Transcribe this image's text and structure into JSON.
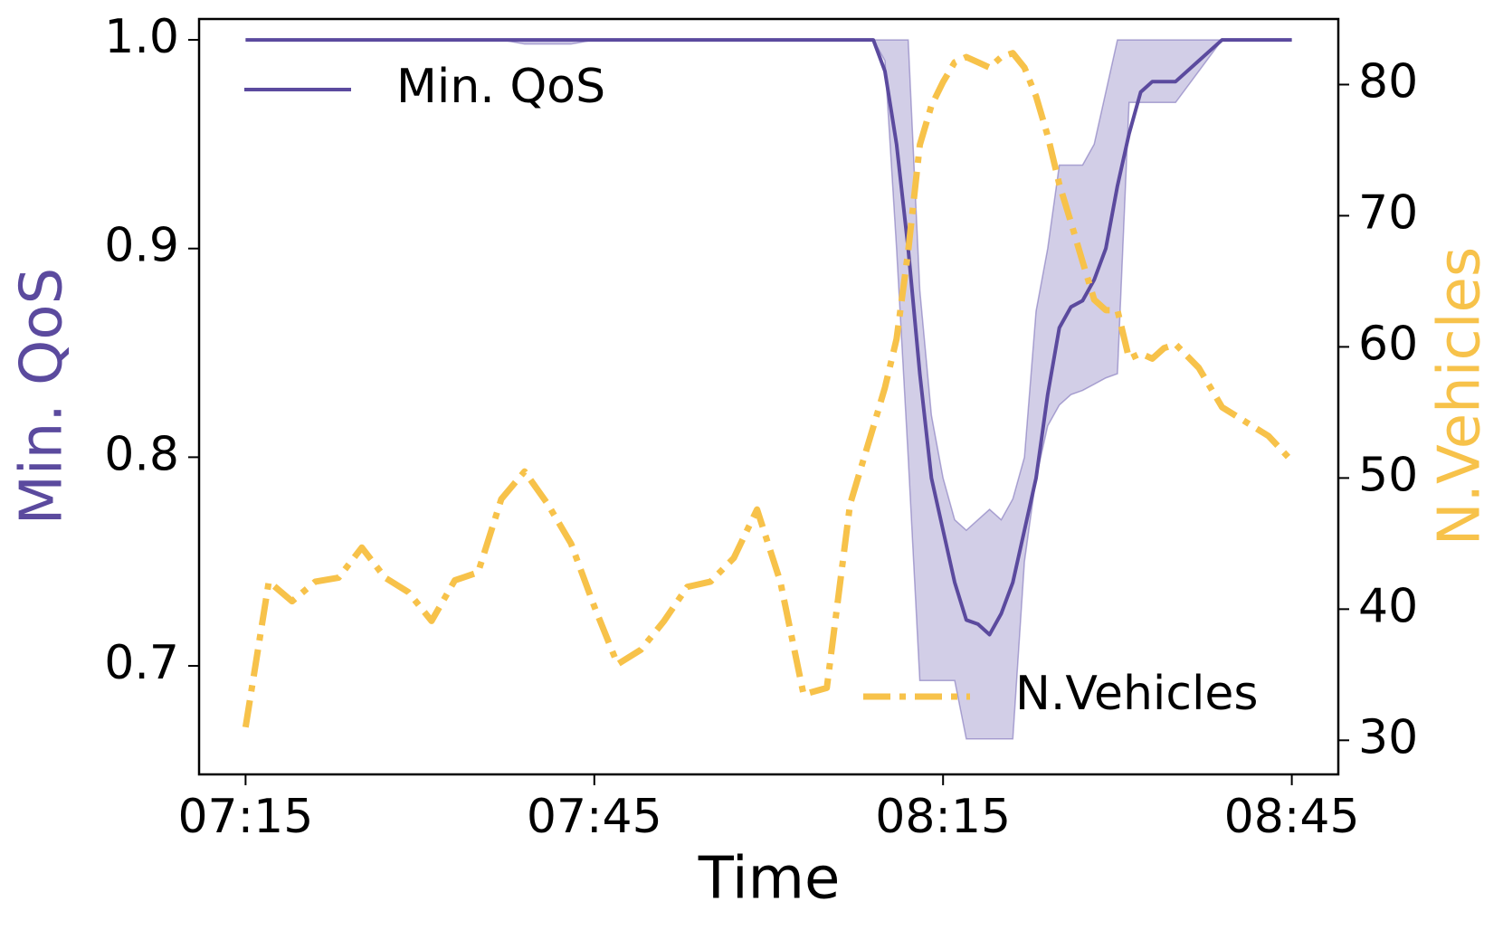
{
  "chart_data": {
    "type": "line",
    "xlabel": "Time",
    "ylabel": "Min. QoS",
    "y2label": "N.Vehicles",
    "x": [
      "07:15",
      "07:17",
      "07:19",
      "07:21",
      "07:23",
      "07:25",
      "07:27",
      "07:29",
      "07:31",
      "07:33",
      "07:35",
      "07:37",
      "07:39",
      "07:41",
      "07:43",
      "07:45",
      "07:47",
      "07:49",
      "07:51",
      "07:53",
      "07:55",
      "07:57",
      "07:59",
      "08:01",
      "08:03",
      "08:05",
      "08:07",
      "08:09",
      "08:10",
      "08:11",
      "08:12",
      "08:13",
      "08:14",
      "08:15",
      "08:16",
      "08:17",
      "08:18",
      "08:19",
      "08:20",
      "08:21",
      "08:22",
      "08:23",
      "08:24",
      "08:25",
      "08:26",
      "08:27",
      "08:28",
      "08:29",
      "08:30",
      "08:31",
      "08:32",
      "08:33",
      "08:34",
      "08:35",
      "08:37",
      "08:39",
      "08:41",
      "08:43",
      "08:45"
    ],
    "xlim": [
      "07:11",
      "08:49"
    ],
    "xticks": [
      "07:15",
      "07:45",
      "08:15",
      "08:45"
    ],
    "ylim": [
      0.648,
      1.01
    ],
    "yticks": [
      0.7,
      0.8,
      0.9,
      {
        "value": 1,
        "label": "1.0"
      }
    ],
    "y2lim": [
      27.4,
      85
    ],
    "y2ticks": [
      30,
      40,
      50,
      60,
      70,
      80
    ],
    "series": [
      {
        "name": "Min. QoS",
        "color": "#5b4a9e",
        "band_color": "#6a5cb0",
        "style": "solid",
        "legend_loc": "upper left",
        "values": [
          1,
          1,
          1,
          1,
          1,
          1,
          1,
          1,
          1,
          1,
          1,
          1,
          1,
          1,
          1,
          1,
          1,
          1,
          1,
          1,
          1,
          1,
          1,
          1,
          1,
          1,
          1,
          1,
          0.985,
          0.95,
          0.9,
          0.84,
          0.79,
          0.765,
          0.74,
          0.722,
          0.72,
          0.715,
          0.725,
          0.74,
          0.765,
          0.79,
          0.83,
          0.862,
          0.872,
          0.875,
          0.885,
          0.9,
          0.93,
          0.955,
          0.975,
          0.98,
          0.98,
          0.98,
          0.99,
          1,
          1,
          1,
          1
        ],
        "lower": [
          1,
          1,
          1,
          1,
          1,
          1,
          1,
          1,
          1,
          1,
          1,
          1,
          0.998,
          0.998,
          0.998,
          1,
          1,
          1,
          1,
          1,
          1,
          1,
          1,
          1,
          1,
          1,
          1,
          1,
          0.99,
          0.9,
          0.8,
          0.693,
          0.693,
          0.693,
          0.693,
          0.665,
          0.665,
          0.665,
          0.665,
          0.665,
          0.75,
          0.79,
          0.815,
          0.825,
          0.83,
          0.832,
          0.835,
          0.838,
          0.84,
          0.97,
          0.97,
          0.97,
          0.97,
          0.97,
          0.985,
          1,
          1,
          1,
          1
        ],
        "upper": [
          1,
          1,
          1,
          1,
          1,
          1,
          1,
          1,
          1,
          1,
          1,
          1,
          1,
          1,
          1,
          1,
          1,
          1,
          1,
          1,
          1,
          1,
          1,
          1,
          1,
          1,
          1,
          1,
          1,
          1,
          1,
          0.88,
          0.82,
          0.79,
          0.77,
          0.765,
          0.77,
          0.775,
          0.77,
          0.78,
          0.8,
          0.87,
          0.9,
          0.94,
          0.94,
          0.94,
          0.95,
          0.975,
          1,
          1,
          1,
          1,
          1,
          1,
          1,
          1,
          1,
          1,
          1
        ]
      },
      {
        "name": "N.Vehicles",
        "color": "#f7c24a",
        "style": "dashdot",
        "axis": "y2",
        "legend_loc": "lower right",
        "values": [
          31,
          42.1,
          40.6,
          42.1,
          42.4,
          44.7,
          42.4,
          41.3,
          39.1,
          42.2,
          42.8,
          48.4,
          50.5,
          48,
          45,
          40.2,
          35.8,
          36.9,
          39.1,
          41.7,
          42.1,
          43.9,
          47.6,
          42.1,
          33.5,
          34,
          48,
          53.9,
          56.9,
          60.6,
          67.3,
          75.4,
          78.4,
          80.2,
          81.7,
          82.1,
          81.7,
          81.3,
          82.1,
          82.4,
          81.3,
          79.1,
          76.1,
          72.4,
          69.5,
          66.5,
          63.6,
          62.8,
          62.8,
          59.1,
          59.5,
          59.1,
          59.9,
          60.2,
          58.4,
          55.4,
          54.3,
          53.2,
          51.3
        ]
      }
    ]
  }
}
